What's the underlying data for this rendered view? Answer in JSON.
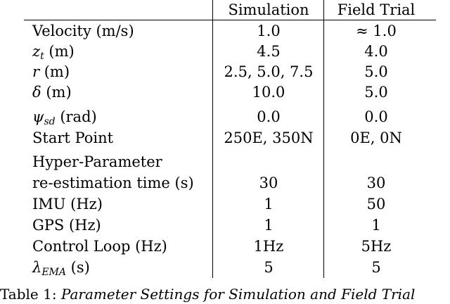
{
  "table": {
    "headers": [
      "",
      "Simulation",
      "Field Trial"
    ],
    "rows": [
      {
        "label": "Velocity (m/s)",
        "simulation": "1.0",
        "field_trial": "≈ 1.0"
      },
      {
        "label_symbol": "z",
        "label_sub": "t",
        "label_unit": "(m)",
        "simulation": "4.5",
        "field_trial": "4.0"
      },
      {
        "label_symbol": "r",
        "label_unit": "(m)",
        "simulation": "2.5, 5.0, 7.5",
        "field_trial": "5.0"
      },
      {
        "label_symbol": "δ",
        "label_unit": "(m)",
        "simulation": "10.0",
        "field_trial": "5.0"
      },
      {
        "label_symbol": "ψ",
        "label_sub": "sd",
        "label_unit": "(rad)",
        "simulation": "0.0",
        "field_trial": "0.0"
      },
      {
        "label": "Start Point",
        "simulation": "250E, 350N",
        "field_trial": "0E, 0N"
      },
      {
        "label": "Hyper-Parameter",
        "simulation": "",
        "field_trial": ""
      },
      {
        "label": "re-estimation time (s)",
        "simulation": "30",
        "field_trial": "30"
      },
      {
        "label": "IMU (Hz)",
        "simulation": "1",
        "field_trial": "50"
      },
      {
        "label": "GPS (Hz)",
        "simulation": "1",
        "field_trial": "1"
      },
      {
        "label": "Control Loop (Hz)",
        "simulation": "1Hz",
        "field_trial": "5Hz"
      },
      {
        "label_symbol": "λ",
        "label_sub": "EMA",
        "label_unit": "(s)",
        "simulation": "5",
        "field_trial": "5"
      }
    ]
  },
  "caption": {
    "prefix": "Table 1: ",
    "text": "Parameter Settings for Simulation and Field Trial"
  }
}
